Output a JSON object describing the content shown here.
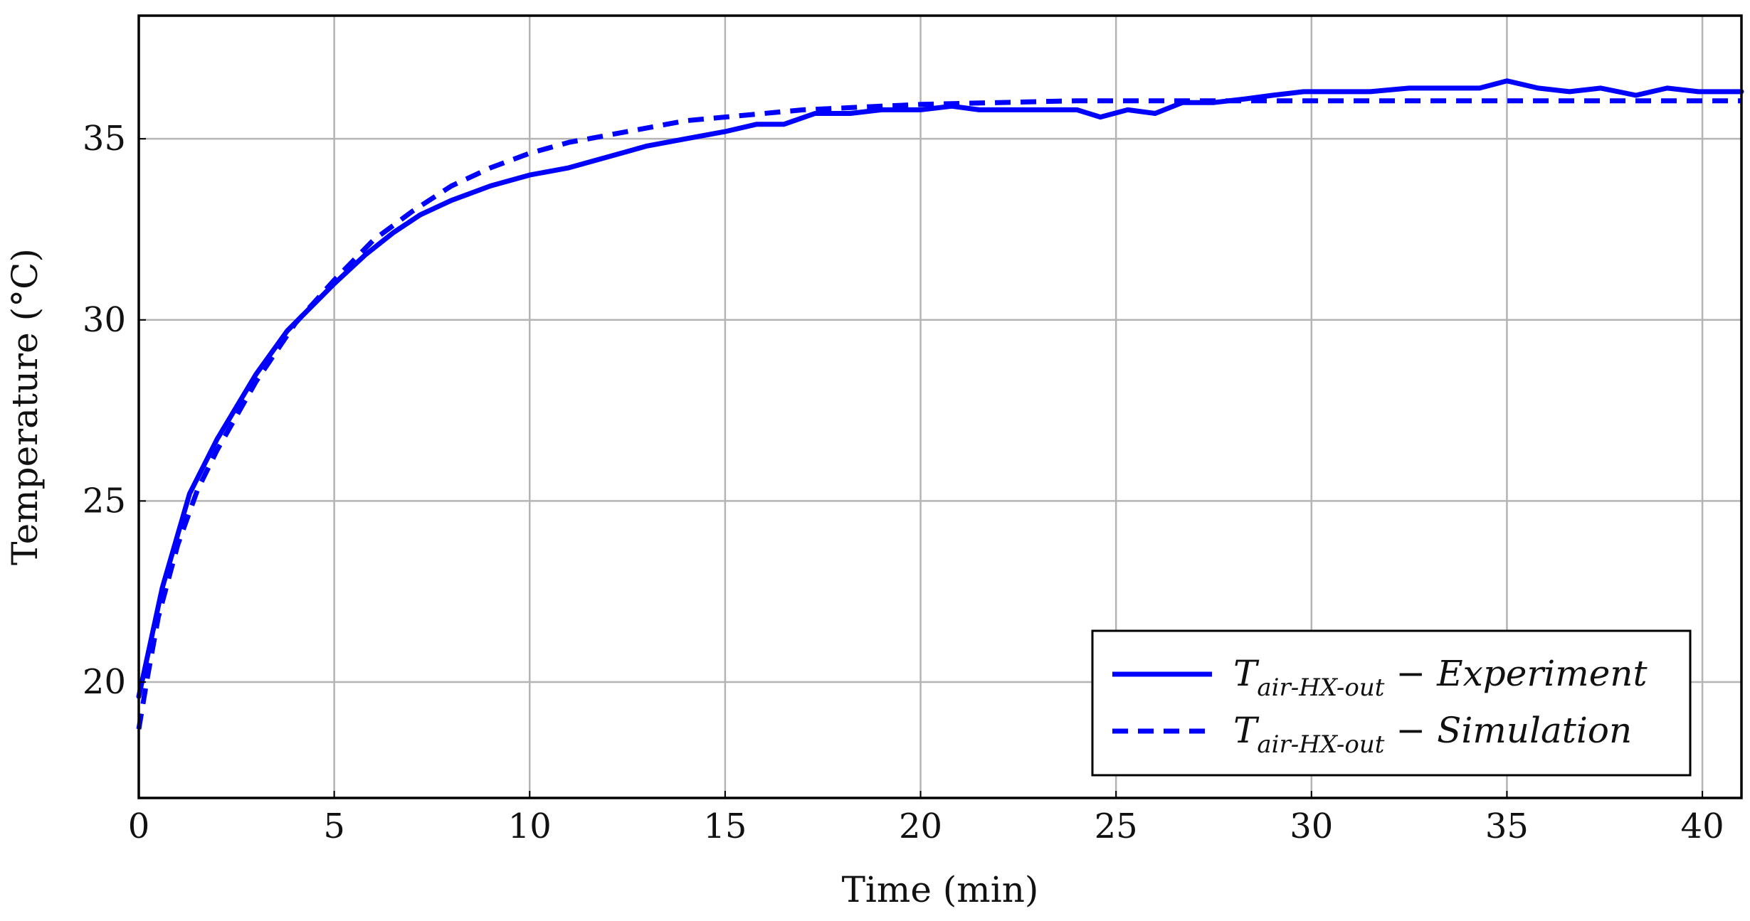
{
  "chart_data": {
    "type": "line",
    "xlabel": "Time (min)",
    "ylabel": "Temperature (°C)",
    "xlim": [
      0,
      41
    ],
    "ylim": [
      16.8,
      38.4
    ],
    "x_ticks": [
      0,
      5,
      10,
      15,
      20,
      25,
      30,
      35,
      40
    ],
    "y_ticks": [
      20,
      25,
      30,
      35
    ],
    "grid": true,
    "legend_position": "bottom-right",
    "series": [
      {
        "name": "T_air-HX-out − Experiment",
        "legend_main": "T",
        "legend_sub": "air-HX-out",
        "legend_suffix": " − Experiment",
        "style": "solid",
        "color": "#0000ff",
        "x": [
          0,
          0.2,
          0.6,
          1.3,
          2.0,
          3.0,
          3.8,
          5.0,
          5.8,
          6.5,
          7.2,
          8.0,
          9.0,
          10.0,
          11.0,
          12.0,
          13.0,
          14.0,
          15.0,
          15.8,
          16.5,
          17.3,
          18.2,
          19.0,
          20.0,
          20.8,
          21.5,
          22.3,
          23.0,
          24.0,
          24.6,
          25.3,
          26.0,
          26.7,
          27.5,
          28.3,
          29.0,
          29.8,
          30.8,
          31.5,
          32.5,
          33.5,
          34.3,
          35.0,
          35.8,
          36.6,
          37.4,
          38.3,
          39.1,
          39.9,
          40.6,
          41.0
        ],
        "y": [
          19.6,
          20.6,
          22.6,
          25.2,
          26.7,
          28.5,
          29.7,
          31.0,
          31.8,
          32.4,
          32.9,
          33.3,
          33.7,
          34.0,
          34.2,
          34.5,
          34.8,
          35.0,
          35.2,
          35.4,
          35.4,
          35.7,
          35.7,
          35.8,
          35.8,
          35.9,
          35.8,
          35.8,
          35.8,
          35.8,
          35.6,
          35.8,
          35.7,
          36.0,
          36.0,
          36.1,
          36.2,
          36.3,
          36.3,
          36.3,
          36.4,
          36.4,
          36.4,
          36.6,
          36.4,
          36.3,
          36.4,
          36.2,
          36.4,
          36.3,
          36.3,
          36.3
        ]
      },
      {
        "name": "T_air-HX-out − Simulation",
        "legend_main": "T",
        "legend_sub": "air-HX-out",
        "legend_suffix": " − Simulation",
        "style": "dashed",
        "color": "#0000ff",
        "x": [
          0,
          0.2,
          0.5,
          1.0,
          1.5,
          2.0,
          3.0,
          4.0,
          5.0,
          6.0,
          7.0,
          8.0,
          9.0,
          10.0,
          11.0,
          12.0,
          13.0,
          14.0,
          15.0,
          16.0,
          17.0,
          18.0,
          19.0,
          20.0,
          22.0,
          24.0,
          26.0,
          28.0,
          30.0,
          32.0,
          34.0,
          36.0,
          38.0,
          40.0,
          41.0
        ],
        "y": [
          18.7,
          20.0,
          21.8,
          23.8,
          25.3,
          26.4,
          28.3,
          29.9,
          31.1,
          32.2,
          33.0,
          33.7,
          34.2,
          34.6,
          34.9,
          35.1,
          35.3,
          35.5,
          35.6,
          35.7,
          35.8,
          35.85,
          35.9,
          35.95,
          36.0,
          36.05,
          36.05,
          36.05,
          36.05,
          36.05,
          36.05,
          36.05,
          36.05,
          36.05,
          36.05
        ]
      }
    ]
  }
}
